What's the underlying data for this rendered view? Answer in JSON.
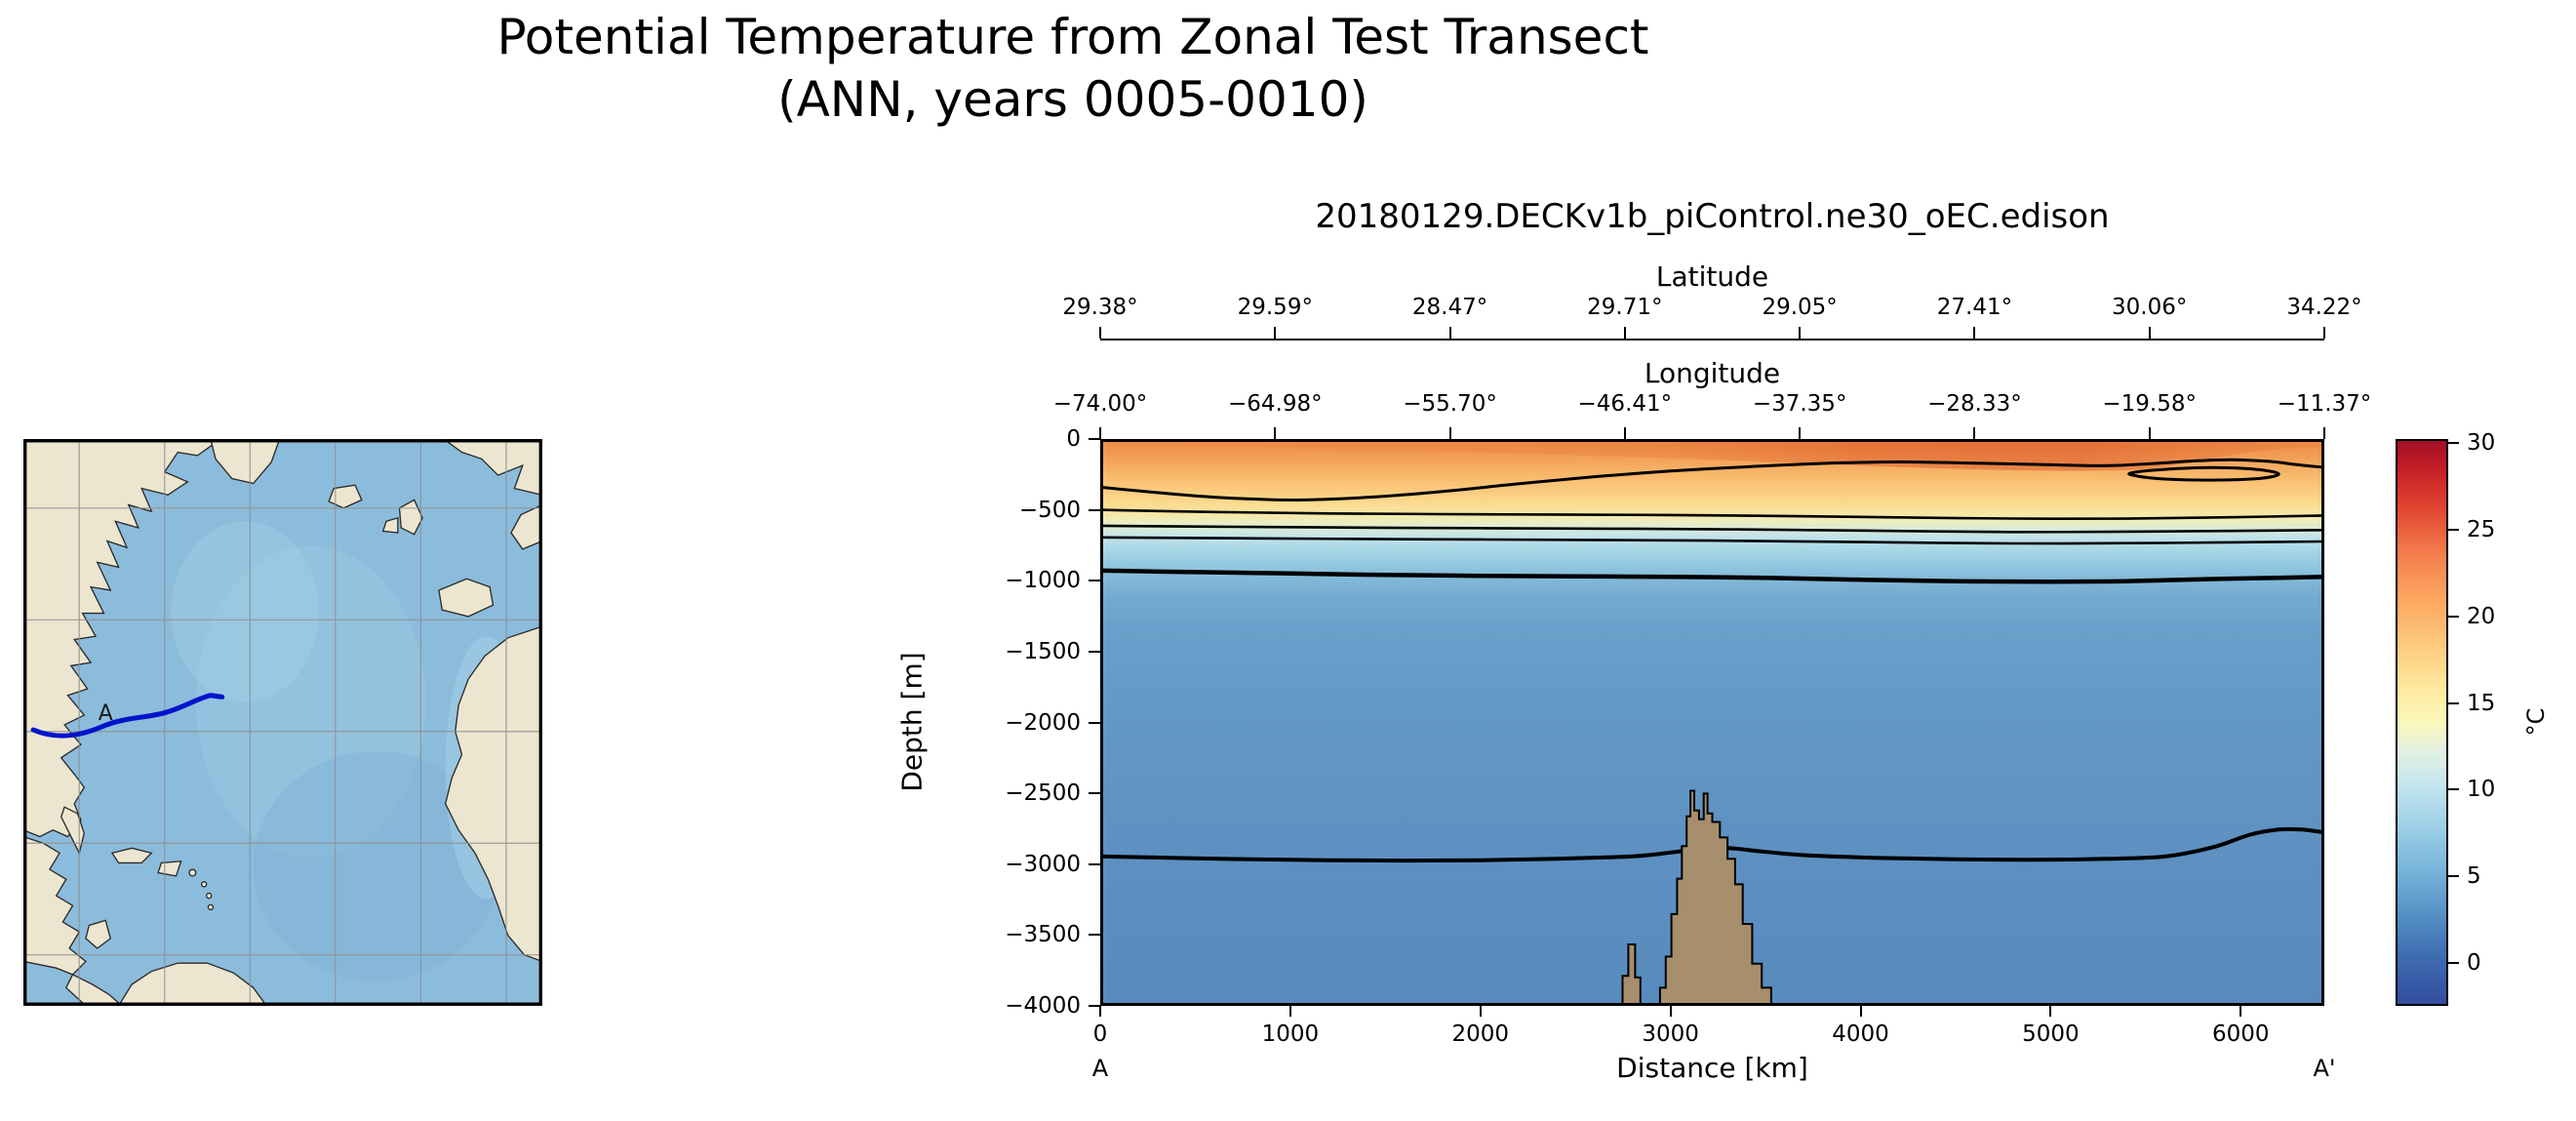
{
  "figure": {
    "title_line1": "Potential Temperature from Zonal Test Transect",
    "title_line2": "(ANN, years 0005-0010)"
  },
  "map": {
    "transect_label": "A",
    "colors": {
      "ocean": "#8cbcdb",
      "land": "#ece6d0",
      "grid": "#8f8f8f",
      "transect": "#0013cc"
    }
  },
  "chart_data": {
    "type": "heatmap",
    "subtype": "filled-contour-ocean-transect",
    "title": "20180129.DECKv1b_piControl.ne30_oEC.edison",
    "field": "Potential Temperature",
    "units": "°C",
    "top_axes": [
      {
        "label": "Latitude",
        "tick_labels": [
          "29.38°",
          "29.59°",
          "28.47°",
          "29.71°",
          "29.05°",
          "27.41°",
          "30.06°",
          "34.22°"
        ]
      },
      {
        "label": "Longitude",
        "tick_labels": [
          "−74.00°",
          "−64.98°",
          "−55.70°",
          "−46.41°",
          "−37.35°",
          "−28.33°",
          "−19.58°",
          "−11.37°"
        ]
      }
    ],
    "xlabel": "Distance [km]",
    "ylabel": "Depth [m]",
    "x_range_km": [
      0,
      6440
    ],
    "y_range_m": [
      -4000,
      0
    ],
    "x_tick_values": [
      0,
      1000,
      2000,
      3000,
      4000,
      5000,
      6000
    ],
    "x_tick_labels": [
      "0",
      "1000",
      "2000",
      "3000",
      "4000",
      "5000",
      "6000"
    ],
    "y_tick_values": [
      0,
      -500,
      -1000,
      -1500,
      -2000,
      -2500,
      -3000,
      -3500,
      -4000
    ],
    "y_tick_labels": [
      "0",
      "−500",
      "−1000",
      "−1500",
      "−2000",
      "−2500",
      "−3000",
      "−3500",
      "−4000"
    ],
    "endpoints": {
      "start": "A",
      "end": "A'"
    },
    "colorbar": {
      "label": "°C",
      "min": -2.5,
      "max": 30.25,
      "tick_values": [
        30,
        25,
        20,
        15,
        10,
        5,
        0
      ],
      "tick_labels": [
        "30",
        "25",
        "20",
        "15",
        "10",
        "5",
        "0"
      ],
      "gradient": [
        {
          "at": 0,
          "color": "#a00d26"
        },
        {
          "at": 0.06,
          "color": "#c92227"
        },
        {
          "at": 0.13,
          "color": "#e34a33"
        },
        {
          "at": 0.2,
          "color": "#f47d4d"
        },
        {
          "at": 0.28,
          "color": "#fba55f"
        },
        {
          "at": 0.36,
          "color": "#fdc97d"
        },
        {
          "at": 0.44,
          "color": "#fee99f"
        },
        {
          "at": 0.5,
          "color": "#fbf8bb"
        },
        {
          "at": 0.55,
          "color": "#e3f1e2"
        },
        {
          "at": 0.61,
          "color": "#c4e5ef"
        },
        {
          "at": 0.68,
          "color": "#9fd0e7"
        },
        {
          "at": 0.76,
          "color": "#78b4da"
        },
        {
          "at": 0.84,
          "color": "#5590c5"
        },
        {
          "at": 0.91,
          "color": "#3f6eb2"
        },
        {
          "at": 1,
          "color": "#334b9e"
        }
      ]
    },
    "field_gradient": [
      {
        "at": 0,
        "color": "#ee8a44"
      },
      {
        "at": 0.02,
        "color": "#f0954e"
      },
      {
        "at": 0.05,
        "color": "#f6ae63"
      },
      {
        "at": 0.08,
        "color": "#fac477"
      },
      {
        "at": 0.11,
        "color": "#fbd88d"
      },
      {
        "at": 0.13,
        "color": "#f8e5a2"
      },
      {
        "at": 0.145,
        "color": "#ecedbd"
      },
      {
        "at": 0.158,
        "color": "#d8ecd9"
      },
      {
        "at": 0.172,
        "color": "#c3e3e9"
      },
      {
        "at": 0.195,
        "color": "#a9d7e6"
      },
      {
        "at": 0.22,
        "color": "#95c9e0"
      },
      {
        "at": 0.245,
        "color": "#83bad9"
      },
      {
        "at": 0.275,
        "color": "#75acd1"
      },
      {
        "at": 0.33,
        "color": "#6aa1cb"
      },
      {
        "at": 0.45,
        "color": "#649ac7"
      },
      {
        "at": 0.62,
        "color": "#6094c3"
      },
      {
        "at": 0.8,
        "color": "#5c8fc0"
      },
      {
        "at": 1,
        "color": "#588bbd"
      }
    ],
    "contours": [
      {
        "width": 3,
        "closed": false,
        "points": [
          [
            0,
            -340
          ],
          [
            250,
            -372
          ],
          [
            600,
            -410
          ],
          [
            1000,
            -430
          ],
          [
            1400,
            -412
          ],
          [
            1800,
            -370
          ],
          [
            2200,
            -316
          ],
          [
            2600,
            -266
          ],
          [
            3000,
            -226
          ],
          [
            3400,
            -196
          ],
          [
            3800,
            -172
          ],
          [
            4200,
            -162
          ],
          [
            4600,
            -170
          ],
          [
            5000,
            -182
          ],
          [
            5300,
            -188
          ],
          [
            5520,
            -175
          ],
          [
            5750,
            -155
          ],
          [
            5950,
            -146
          ],
          [
            6150,
            -158
          ],
          [
            6300,
            -182
          ],
          [
            6440,
            -200
          ]
        ]
      },
      {
        "width": 3,
        "closed": true,
        "points": [
          [
            5420,
            -240
          ],
          [
            5600,
            -214
          ],
          [
            5850,
            -202
          ],
          [
            6080,
            -214
          ],
          [
            6200,
            -246
          ],
          [
            6100,
            -278
          ],
          [
            5850,
            -290
          ],
          [
            5600,
            -282
          ],
          [
            5460,
            -262
          ]
        ]
      },
      {
        "width": 2.6,
        "closed": false,
        "points": [
          [
            0,
            -500
          ],
          [
            600,
            -515
          ],
          [
            1200,
            -525
          ],
          [
            1800,
            -530
          ],
          [
            2400,
            -533
          ],
          [
            3000,
            -536
          ],
          [
            3600,
            -543
          ],
          [
            4200,
            -553
          ],
          [
            4800,
            -561
          ],
          [
            5400,
            -562
          ],
          [
            5950,
            -552
          ],
          [
            6440,
            -540
          ]
        ]
      },
      {
        "width": 2.6,
        "closed": false,
        "points": [
          [
            0,
            -612
          ],
          [
            800,
            -620
          ],
          [
            1600,
            -627
          ],
          [
            2400,
            -631
          ],
          [
            3200,
            -636
          ],
          [
            4000,
            -646
          ],
          [
            4800,
            -656
          ],
          [
            5600,
            -652
          ],
          [
            6440,
            -642
          ]
        ]
      },
      {
        "width": 2.6,
        "closed": false,
        "points": [
          [
            0,
            -694
          ],
          [
            800,
            -701
          ],
          [
            1600,
            -707
          ],
          [
            2400,
            -711
          ],
          [
            3200,
            -717
          ],
          [
            4000,
            -727
          ],
          [
            4800,
            -737
          ],
          [
            5600,
            -733
          ],
          [
            6440,
            -723
          ]
        ]
      },
      {
        "width": 4.5,
        "closed": false,
        "points": [
          [
            0,
            -928
          ],
          [
            500,
            -939
          ],
          [
            1000,
            -949
          ],
          [
            1500,
            -959
          ],
          [
            2000,
            -965
          ],
          [
            2500,
            -969
          ],
          [
            3000,
            -973
          ],
          [
            3500,
            -979
          ],
          [
            4000,
            -993
          ],
          [
            4500,
            -1003
          ],
          [
            5000,
            -1007
          ],
          [
            5400,
            -1003
          ],
          [
            5800,
            -989
          ],
          [
            6200,
            -979
          ],
          [
            6440,
            -973
          ]
        ]
      },
      {
        "width": 4,
        "closed": false,
        "points": [
          [
            0,
            -2945
          ],
          [
            400,
            -2956
          ],
          [
            800,
            -2966
          ],
          [
            1200,
            -2972
          ],
          [
            1600,
            -2975
          ],
          [
            2000,
            -2973
          ],
          [
            2400,
            -2962
          ],
          [
            2800,
            -2945
          ],
          [
            3000,
            -2918
          ],
          [
            3150,
            -2892
          ],
          [
            3300,
            -2886
          ],
          [
            3450,
            -2906
          ],
          [
            3700,
            -2936
          ],
          [
            4100,
            -2956
          ],
          [
            4500,
            -2966
          ],
          [
            4900,
            -2969
          ],
          [
            5300,
            -2962
          ],
          [
            5600,
            -2946
          ],
          [
            5850,
            -2882
          ],
          [
            6050,
            -2792
          ],
          [
            6200,
            -2756
          ],
          [
            6320,
            -2756
          ],
          [
            6440,
            -2776
          ]
        ]
      }
    ],
    "bathymetry": {
      "color": "#a78e6d",
      "features": [
        {
          "name": "small-peak",
          "points": [
            [
              2748,
              -4000
            ],
            [
              2748,
              -3788
            ],
            [
              2778,
              -3788
            ],
            [
              2778,
              -3566
            ],
            [
              2814,
              -3566
            ],
            [
              2814,
              -3800
            ],
            [
              2842,
              -3800
            ],
            [
              2842,
              -4000
            ]
          ]
        },
        {
          "name": "seamount",
          "points": [
            [
              2945,
              -4000
            ],
            [
              2945,
              -3872
            ],
            [
              2975,
              -3872
            ],
            [
              2975,
              -3652
            ],
            [
              3005,
              -3652
            ],
            [
              3005,
              -3352
            ],
            [
              3035,
              -3352
            ],
            [
              3035,
              -3102
            ],
            [
              3060,
              -3102
            ],
            [
              3060,
              -2872
            ],
            [
              3085,
              -2872
            ],
            [
              3085,
              -2662
            ],
            [
              3105,
              -2662
            ],
            [
              3105,
              -2482
            ],
            [
              3125,
              -2482
            ],
            [
              3125,
              -2622
            ],
            [
              3150,
              -2622
            ],
            [
              3150,
              -2682
            ],
            [
              3175,
              -2682
            ],
            [
              3175,
              -2502
            ],
            [
              3195,
              -2502
            ],
            [
              3195,
              -2642
            ],
            [
              3220,
              -2642
            ],
            [
              3220,
              -2702
            ],
            [
              3260,
              -2702
            ],
            [
              3260,
              -2812
            ],
            [
              3300,
              -2812
            ],
            [
              3300,
              -2962
            ],
            [
              3340,
              -2962
            ],
            [
              3340,
              -3142
            ],
            [
              3380,
              -3142
            ],
            [
              3380,
              -3422
            ],
            [
              3430,
              -3422
            ],
            [
              3430,
              -3702
            ],
            [
              3480,
              -3702
            ],
            [
              3480,
              -3872
            ],
            [
              3530,
              -3872
            ],
            [
              3530,
              -4000
            ]
          ]
        }
      ]
    }
  }
}
